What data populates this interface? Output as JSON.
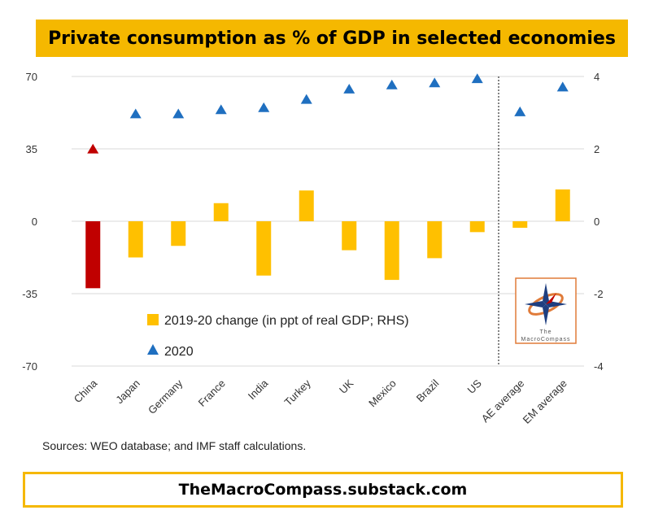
{
  "title": "Private consumption as % of GDP in selected economies",
  "source": "Sources: WEO database; and IMF staff calculations.",
  "footer": "TheMacroCompass.substack.com",
  "logo": {
    "line1": "The",
    "line2": "MacroCompass"
  },
  "colors": {
    "bar": "#ffc000",
    "bar_highlight": "#c00000",
    "marker": "#1f6fc0",
    "marker_highlight": "#c00000"
  },
  "chart_data": {
    "type": "bar",
    "categories": [
      "China",
      "Japan",
      "Germany",
      "France",
      "India",
      "Turkey",
      "UK",
      "Mexico",
      "Brazil",
      "US",
      "AE average",
      "EM average"
    ],
    "left_axis": {
      "ylim": [
        -70,
        70
      ],
      "ticks": [
        "70",
        "35",
        "0",
        "-35",
        "-70"
      ],
      "tick_values": [
        70,
        35,
        0,
        -35,
        -70
      ]
    },
    "right_axis": {
      "ylim": [
        -4,
        4
      ],
      "ticks": [
        "4",
        "2",
        "0",
        "-2",
        "-4"
      ],
      "tick_values": [
        4,
        2,
        0,
        -2,
        -4
      ]
    },
    "series": [
      {
        "name": "2019-20 change (in ppt of real GDP; RHS)",
        "kind": "bar",
        "axis": "right",
        "values": [
          -1.85,
          -1.0,
          -0.68,
          0.5,
          -1.5,
          0.85,
          -0.8,
          -1.62,
          -1.02,
          -0.3,
          -0.18,
          0.88
        ]
      },
      {
        "name": "2020",
        "kind": "marker",
        "axis": "left",
        "values": [
          35,
          52,
          52,
          54,
          55,
          59,
          64,
          66,
          67,
          69,
          53,
          65
        ]
      }
    ],
    "highlight_index": 0,
    "separator_after": "US",
    "legend_position": "bottom-left",
    "grid": true
  }
}
